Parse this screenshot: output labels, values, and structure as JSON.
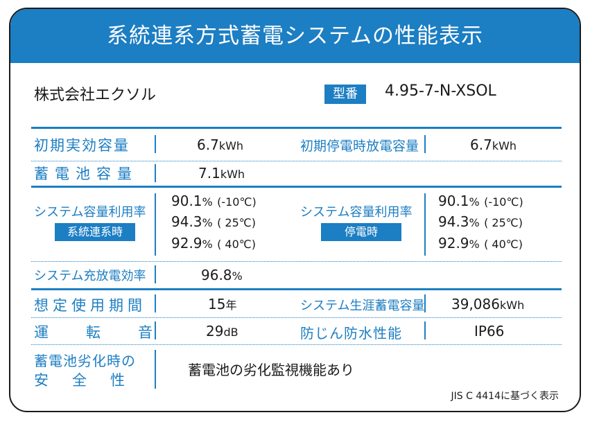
{
  "header": {
    "title": "系統連系方式蓄電システムの性能表示"
  },
  "company": "株式会社エクソル",
  "model": {
    "badge": "型番",
    "number": "4.95-7-N-XSOL"
  },
  "rows": {
    "initial_effective_capacity": {
      "label": "初期実効容量",
      "value": "6.7",
      "unit": "kWh"
    },
    "initial_outage_capacity": {
      "label": "初期停電時放電容量",
      "value": "6.7",
      "unit": "kWh"
    },
    "battery_capacity": {
      "label": "蓄電池容量",
      "value": "7.1",
      "unit": "kWh"
    },
    "utilization_grid": {
      "label": "システム容量利用率",
      "badge": "系統連系時",
      "lines": [
        {
          "value": "90.1",
          "unit": "%",
          "cond": "(-10℃)"
        },
        {
          "value": "94.3",
          "unit": "%",
          "cond": "( 25℃)"
        },
        {
          "value": "92.9",
          "unit": "%",
          "cond": "( 40℃)"
        }
      ]
    },
    "utilization_outage": {
      "label": "システム容量利用率",
      "badge": "停電時",
      "lines": [
        {
          "value": "90.1",
          "unit": "%",
          "cond": "(-10℃)"
        },
        {
          "value": "94.3",
          "unit": "%",
          "cond": "( 25℃)"
        },
        {
          "value": "92.9",
          "unit": "%",
          "cond": "( 40℃)"
        }
      ]
    },
    "charge_discharge_efficiency": {
      "label": "システム充放電効率",
      "value": "96.8",
      "unit": "%"
    },
    "expected_lifetime": {
      "label": "想定使用期間",
      "value": "15",
      "unit": "年"
    },
    "lifetime_storage": {
      "label": "システム生涯蓄電容量",
      "value": "39,086",
      "unit": "kWh"
    },
    "operating_sound": {
      "label": "運転音",
      "value": "29",
      "unit": "dB"
    },
    "ingress_protection": {
      "label": "防じん防水性能",
      "value": "IP66"
    },
    "degradation_safety": {
      "label_line1": "蓄電池劣化時の",
      "label_line2": "安全性",
      "value": "蓄電池の劣化監視機能あり"
    }
  },
  "footnote": "JIS C 4414に基づく表示",
  "colors": {
    "accent": "#1c7ec3",
    "border": "#1a1a1a",
    "text": "#1a1a1a"
  }
}
